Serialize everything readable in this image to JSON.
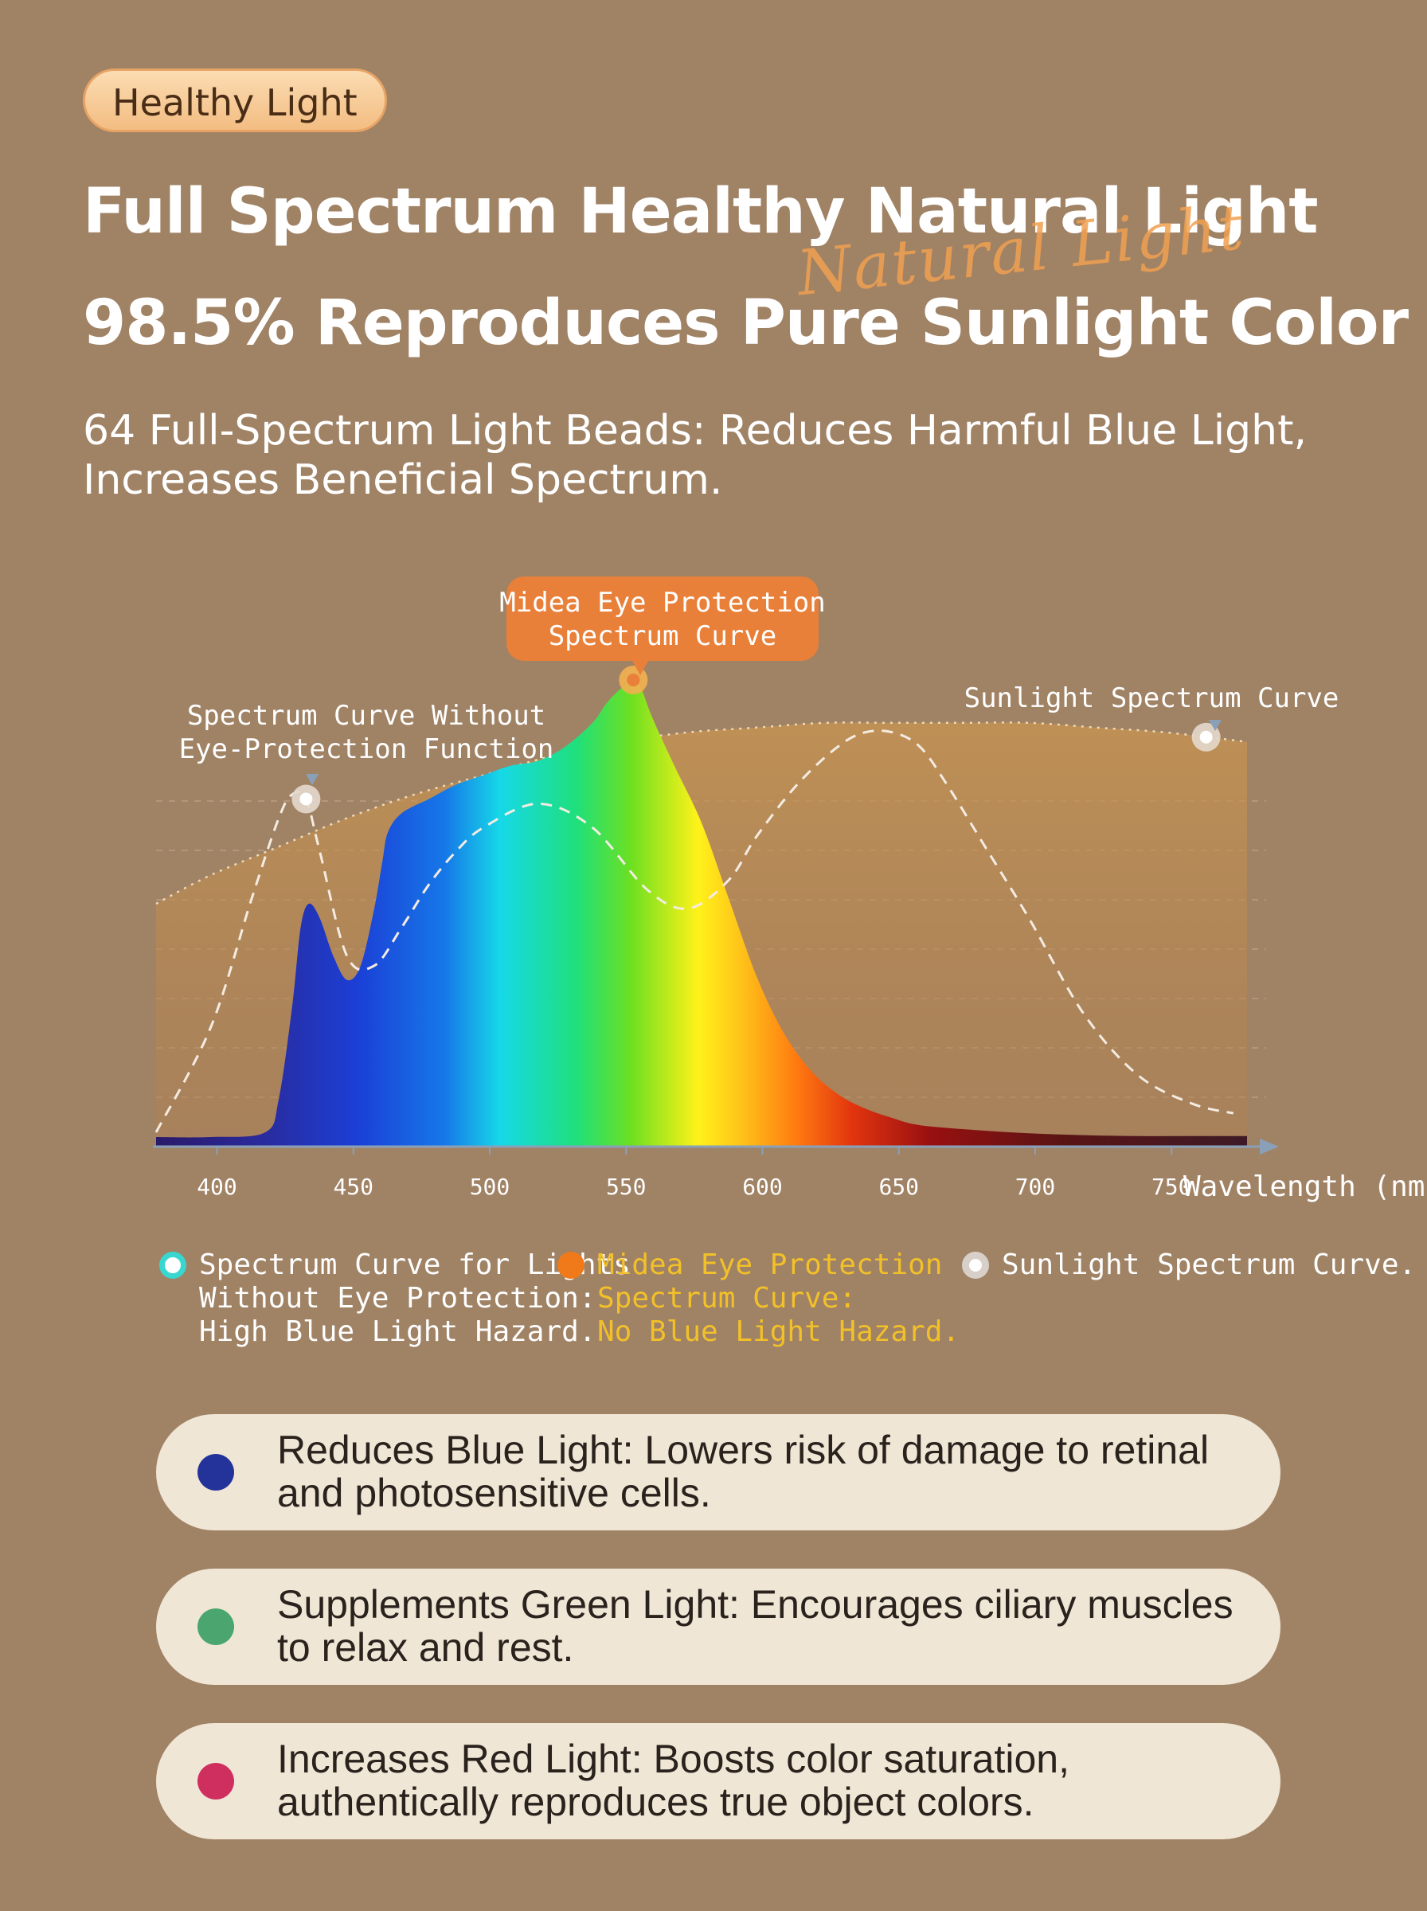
{
  "badge": "Healthy Light",
  "title_line1": "Full Spectrum Healthy Natural Light",
  "title_line2": "98.5% Reproduces Pure Sunlight Color",
  "script_text": "Natural Light",
  "subtitle": "64 Full-Spectrum Light Beads: Reduces Harmful Blue Light, Increases Beneficial Spectrum.",
  "colors": {
    "background": "#a08265",
    "midea_orange": "#e8803a",
    "legend_yellow": "#f2c029",
    "legend_teal": "#3ad6d0",
    "blue_dot": "#23339a",
    "green_dot": "#4aa56e",
    "red_dot": "#cf2f5f"
  },
  "chart_data": {
    "type": "area",
    "xlabel": "Wavelength (nm)",
    "x_ticks": [
      400,
      450,
      500,
      550,
      600,
      650,
      700,
      750
    ],
    "xlim": [
      380,
      780
    ],
    "ylim": [
      0,
      1
    ],
    "grid": true,
    "annotations": {
      "midea": "Midea Eye Protection Spectrum Curve",
      "without": "Spectrum Curve Without Eye-Protection Function",
      "sunlight": "Sunlight Spectrum Curve"
    },
    "series": [
      {
        "name": "Midea Eye Protection Spectrum Curve",
        "style": "rainbow-fill",
        "x": [
          380,
          400,
          420,
          425,
          430,
          433,
          436,
          440,
          445,
          450,
          455,
          460,
          463,
          465,
          470,
          480,
          490,
          500,
          510,
          520,
          530,
          540,
          545,
          550,
          555,
          558,
          562,
          570,
          580,
          590,
          600,
          610,
          620,
          630,
          640,
          650,
          660,
          680,
          700,
          720,
          740,
          760,
          780
        ],
        "y": [
          0.02,
          0.02,
          0.03,
          0.1,
          0.3,
          0.46,
          0.51,
          0.48,
          0.4,
          0.35,
          0.38,
          0.5,
          0.6,
          0.66,
          0.7,
          0.73,
          0.76,
          0.78,
          0.8,
          0.81,
          0.84,
          0.89,
          0.93,
          0.96,
          0.98,
          0.96,
          0.9,
          0.8,
          0.68,
          0.52,
          0.36,
          0.24,
          0.16,
          0.11,
          0.08,
          0.06,
          0.045,
          0.035,
          0.028,
          0.024,
          0.022,
          0.022,
          0.022
        ]
      },
      {
        "name": "Spectrum Curve Without Eye-Protection Function",
        "style": "dashed",
        "x": [
          380,
          400,
          415,
          425,
          430,
          435,
          440,
          450,
          460,
          470,
          480,
          490,
          500,
          520,
          540,
          560,
          575,
          590,
          600,
          615,
          630,
          640,
          650,
          660,
          670,
          685,
          700,
          720,
          740,
          760,
          775
        ],
        "y": [
          0.03,
          0.25,
          0.52,
          0.69,
          0.74,
          0.73,
          0.62,
          0.4,
          0.38,
          0.46,
          0.55,
          0.62,
          0.67,
          0.72,
          0.67,
          0.54,
          0.5,
          0.56,
          0.65,
          0.76,
          0.84,
          0.87,
          0.87,
          0.84,
          0.76,
          0.62,
          0.48,
          0.28,
          0.15,
          0.09,
          0.07
        ]
      },
      {
        "name": "Sunlight Spectrum Curve",
        "style": "dotted-band",
        "x": [
          380,
          400,
          425,
          450,
          475,
          500,
          525,
          550,
          575,
          600,
          625,
          650,
          675,
          700,
          725,
          750,
          780
        ],
        "y": [
          0.51,
          0.57,
          0.63,
          0.69,
          0.74,
          0.78,
          0.82,
          0.85,
          0.87,
          0.88,
          0.89,
          0.89,
          0.89,
          0.89,
          0.88,
          0.87,
          0.85
        ]
      }
    ],
    "markers": [
      {
        "series": "Spectrum Curve Without Eye-Protection Function",
        "x": 435,
        "y": 0.73
      },
      {
        "series": "Midea Eye Protection Spectrum Curve",
        "x": 555,
        "y": 0.98
      },
      {
        "series": "Sunlight Spectrum Curve",
        "x": 765,
        "y": 0.86
      }
    ]
  },
  "legend": [
    {
      "text_lines": [
        "Spectrum Curve for Lights",
        "Without Eye Protection:",
        "High Blue Light Hazard."
      ],
      "color": "#3ad6d0"
    },
    {
      "text_lines": [
        "Midea Eye Protection",
        "Spectrum Curve:",
        "No Blue Light Hazard."
      ],
      "color": "#f2c029"
    },
    {
      "text_lines": [
        "Sunlight Spectrum Curve."
      ],
      "color": "#ffffff"
    }
  ],
  "features": [
    {
      "line1": "Reduces Blue Light: Lowers risk of damage to retinal",
      "line2": "and photosensitive cells.",
      "color": "#23339a"
    },
    {
      "line1": "Supplements Green Light: Encourages ciliary muscles",
      "line2": "to relax and rest.",
      "color": "#4aa56e"
    },
    {
      "line1": "Increases Red Light: Boosts color saturation,",
      "line2": "authentically reproduces true object colors.",
      "color": "#cf2f5f"
    }
  ]
}
